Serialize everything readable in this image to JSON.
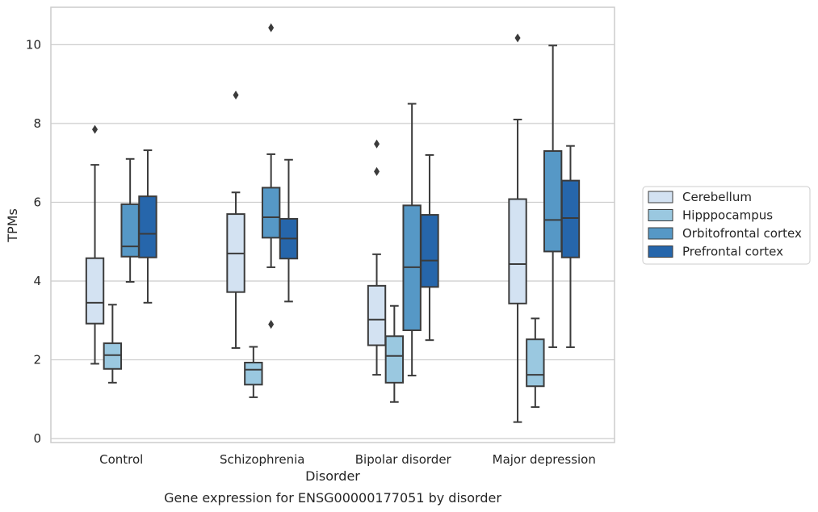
{
  "chart_data": {
    "type": "box",
    "title": "Gene expression for ENSG00000177051 by disorder",
    "xlabel": "Disorder",
    "ylabel": "TPMs",
    "categories": [
      "Control",
      "Schizophrenia",
      "Bipolar disorder",
      "Major depression"
    ],
    "ylim": [
      -0.1,
      10.95
    ],
    "yticks": [
      0,
      2,
      4,
      6,
      8,
      10
    ],
    "grid": "horizontal",
    "legend_position": "right",
    "series": [
      {
        "name": "Cerebellum",
        "color": "#d3e2f2",
        "boxes": [
          {
            "whisker_low": 1.9,
            "q1": 2.92,
            "median": 3.45,
            "q3": 4.58,
            "whisker_high": 6.95,
            "outliers": [
              7.85
            ]
          },
          {
            "whisker_low": 2.3,
            "q1": 3.72,
            "median": 4.7,
            "q3": 5.7,
            "whisker_high": 6.25,
            "outliers": [
              8.72
            ]
          },
          {
            "whisker_low": 1.62,
            "q1": 2.37,
            "median": 3.02,
            "q3": 3.88,
            "whisker_high": 4.68,
            "outliers": [
              7.48,
              6.78
            ]
          },
          {
            "whisker_low": 0.42,
            "q1": 3.43,
            "median": 4.43,
            "q3": 6.08,
            "whisker_high": 8.1,
            "outliers": [
              10.17
            ]
          }
        ]
      },
      {
        "name": "Hipppocampus",
        "color": "#9ac8e0",
        "boxes": [
          {
            "whisker_low": 1.42,
            "q1": 1.77,
            "median": 2.12,
            "q3": 2.42,
            "whisker_high": 3.4,
            "outliers": []
          },
          {
            "whisker_low": 1.05,
            "q1": 1.37,
            "median": 1.75,
            "q3": 1.93,
            "whisker_high": 2.33,
            "outliers": []
          },
          {
            "whisker_low": 0.93,
            "q1": 1.42,
            "median": 2.1,
            "q3": 2.6,
            "whisker_high": 3.37,
            "outliers": []
          },
          {
            "whisker_low": 0.8,
            "q1": 1.33,
            "median": 1.62,
            "q3": 2.52,
            "whisker_high": 3.05,
            "outliers": []
          }
        ]
      },
      {
        "name": "Orbitofrontal cortex",
        "color": "#5698c6",
        "boxes": [
          {
            "whisker_low": 3.98,
            "q1": 4.62,
            "median": 4.88,
            "q3": 5.95,
            "whisker_high": 7.1,
            "outliers": []
          },
          {
            "whisker_low": 4.35,
            "q1": 5.1,
            "median": 5.62,
            "q3": 6.37,
            "whisker_high": 7.22,
            "outliers": [
              10.43,
              2.9
            ]
          },
          {
            "whisker_low": 1.6,
            "q1": 2.75,
            "median": 4.35,
            "q3": 5.92,
            "whisker_high": 8.5,
            "outliers": []
          },
          {
            "whisker_low": 2.32,
            "q1": 4.75,
            "median": 5.55,
            "q3": 7.3,
            "whisker_high": 9.98,
            "outliers": []
          }
        ]
      },
      {
        "name": "Prefrontal cortex",
        "color": "#2666ab",
        "boxes": [
          {
            "whisker_low": 3.45,
            "q1": 4.6,
            "median": 5.2,
            "q3": 6.15,
            "whisker_high": 7.32,
            "outliers": []
          },
          {
            "whisker_low": 3.48,
            "q1": 4.57,
            "median": 5.08,
            "q3": 5.58,
            "whisker_high": 7.08,
            "outliers": []
          },
          {
            "whisker_low": 2.5,
            "q1": 3.85,
            "median": 4.52,
            "q3": 5.68,
            "whisker_high": 7.2,
            "outliers": []
          },
          {
            "whisker_low": 2.32,
            "q1": 4.6,
            "median": 5.6,
            "q3": 6.55,
            "whisker_high": 7.43,
            "outliers": []
          }
        ]
      }
    ]
  }
}
